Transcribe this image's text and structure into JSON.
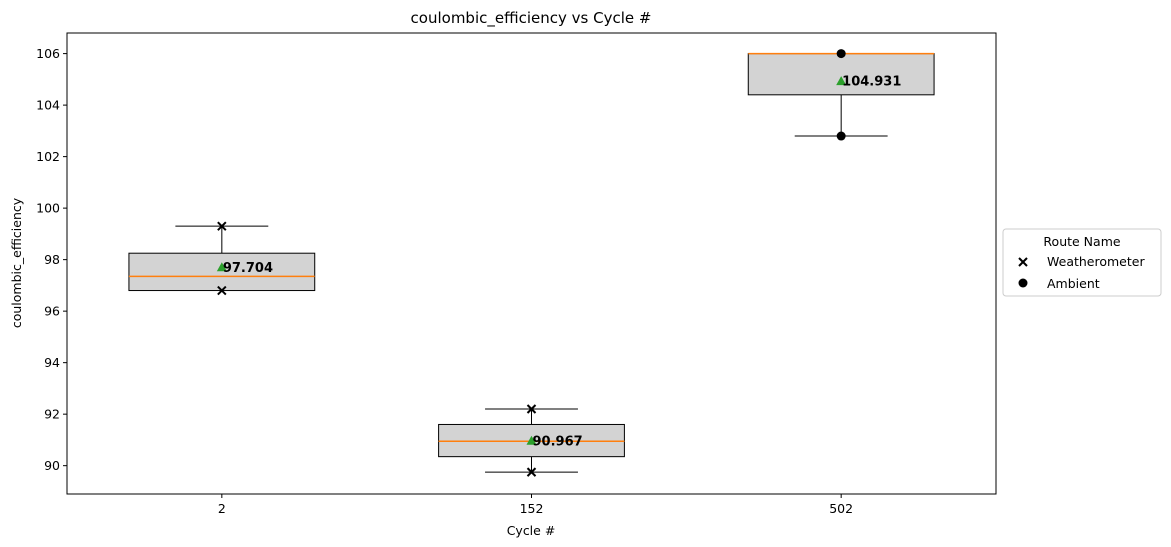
{
  "chart_data": {
    "type": "box",
    "title": "coulombic_efficiency vs Cycle #",
    "xlabel": "Cycle #",
    "ylabel": "coulombic_efficiency",
    "categories": [
      "2",
      "152",
      "502"
    ],
    "ylim": [
      88.9,
      106.8
    ],
    "yticks": [
      90,
      92,
      94,
      96,
      98,
      100,
      102,
      104,
      106
    ],
    "grid": false,
    "colors": {
      "box_fill": "#d3d3d3",
      "median": "#ff7f0e",
      "mean_marker": "#2ca02c",
      "points": "#000000"
    },
    "boxes": [
      {
        "category": "2",
        "whisker_low": 96.8,
        "q1": 96.8,
        "median": 97.35,
        "q3": 98.25,
        "whisker_high": 99.3,
        "mean": 97.704,
        "mean_label": "97.704"
      },
      {
        "category": "152",
        "whisker_low": 89.75,
        "q1": 90.35,
        "median": 90.95,
        "q3": 91.6,
        "whisker_high": 92.2,
        "mean": 90.967,
        "mean_label": "90.967"
      },
      {
        "category": "502",
        "whisker_low": 102.8,
        "q1": 104.4,
        "median": 106.0,
        "q3": 106.0,
        "whisker_high": 106.0,
        "mean": 104.931,
        "mean_label": "104.931"
      }
    ],
    "series": [
      {
        "name": "Weatherometer",
        "marker": "x",
        "points": [
          {
            "x": "2",
            "y": 99.3
          },
          {
            "x": "2",
            "y": 96.8
          },
          {
            "x": "152",
            "y": 92.2
          },
          {
            "x": "152",
            "y": 89.75
          }
        ]
      },
      {
        "name": "Ambient",
        "marker": "o",
        "points": [
          {
            "x": "502",
            "y": 106.0
          },
          {
            "x": "502",
            "y": 102.8
          }
        ]
      }
    ],
    "legend": {
      "title": "Route Name",
      "placement": "right-outside"
    }
  }
}
